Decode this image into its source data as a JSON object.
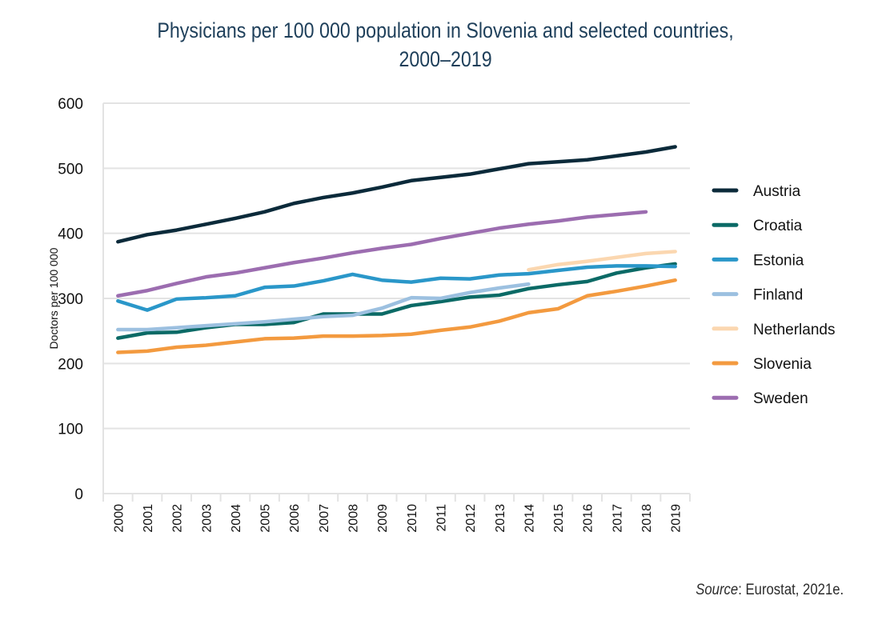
{
  "title_line1": "Physicians per 100 000 population in Slovenia and selected countries,",
  "title_line2": "2000–2019",
  "source_label": "Source",
  "source_text": ": Eurostat, 2021e.",
  "chart_data": {
    "type": "line",
    "title": "Physicians per 100 000 population in Slovenia and selected countries, 2000–2019",
    "xlabel": "",
    "ylabel": "Doctors per 100 000",
    "ylim": [
      0,
      600
    ],
    "yticks": [
      0,
      100,
      200,
      300,
      400,
      500,
      600
    ],
    "grid": "horizontal",
    "legend_position": "right",
    "x": [
      "2000",
      "2001",
      "2002",
      "2003",
      "2004",
      "2005",
      "2006",
      "2007",
      "2008",
      "2009",
      "2010",
      "2011",
      "2012",
      "2013",
      "2014",
      "2015",
      "2016",
      "2017",
      "2018",
      "2019"
    ],
    "series": [
      {
        "name": "Austria",
        "color": "#0b2a3a",
        "values": [
          387,
          398,
          405,
          414,
          423,
          433,
          446,
          455,
          462,
          471,
          481,
          486,
          491,
          499,
          507,
          510,
          513,
          519,
          525,
          533
        ]
      },
      {
        "name": "Croatia",
        "color": "#0b6a66",
        "values": [
          239,
          247,
          248,
          255,
          260,
          260,
          263,
          276,
          276,
          276,
          289,
          295,
          302,
          305,
          315,
          321,
          326,
          339,
          347,
          353
        ]
      },
      {
        "name": "Estonia",
        "color": "#2a97c9",
        "values": [
          296,
          282,
          299,
          301,
          304,
          317,
          319,
          327,
          337,
          328,
          325,
          331,
          330,
          336,
          338,
          343,
          348,
          350,
          350,
          349
        ]
      },
      {
        "name": "Finland",
        "color": "#9cc0e0",
        "values": [
          252,
          252,
          255,
          258,
          261,
          264,
          268,
          272,
          274,
          285,
          301,
          300,
          309,
          316,
          322,
          null,
          null,
          null,
          null,
          null
        ]
      },
      {
        "name": "Netherlands",
        "color": "#fbd7b0",
        "values": [
          null,
          null,
          null,
          null,
          null,
          null,
          null,
          null,
          null,
          null,
          null,
          null,
          null,
          null,
          344,
          352,
          357,
          363,
          369,
          372
        ]
      },
      {
        "name": "Slovenia",
        "color": "#f39a3f",
        "values": [
          217,
          219,
          225,
          228,
          233,
          238,
          239,
          242,
          242,
          243,
          245,
          251,
          256,
          265,
          278,
          284,
          304,
          311,
          319,
          328
        ]
      },
      {
        "name": "Sweden",
        "color": "#9c6db0",
        "values": [
          304,
          312,
          323,
          333,
          339,
          347,
          355,
          362,
          370,
          377,
          383,
          392,
          400,
          408,
          414,
          419,
          425,
          429,
          433,
          null
        ]
      }
    ]
  }
}
